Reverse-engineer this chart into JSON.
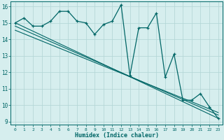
{
  "title": "",
  "xlabel": "Humidex (Indice chaleur)",
  "background_color": "#d6eeee",
  "grid_color": "#b0d4d4",
  "line_color": "#006666",
  "xlim": [
    -0.5,
    23.5
  ],
  "ylim": [
    8.8,
    16.3
  ],
  "yticks": [
    9,
    10,
    11,
    12,
    13,
    14,
    15,
    16
  ],
  "xticks": [
    0,
    1,
    2,
    3,
    4,
    5,
    6,
    7,
    8,
    9,
    10,
    11,
    12,
    13,
    14,
    15,
    16,
    17,
    18,
    19,
    20,
    21,
    22,
    23
  ],
  "series1_x": [
    0,
    1,
    2,
    3,
    4,
    5,
    6,
    7,
    8,
    9,
    10,
    11,
    12,
    13,
    14,
    15,
    16,
    17,
    18,
    19,
    20,
    21,
    22,
    23
  ],
  "series1_y": [
    15.0,
    15.3,
    14.8,
    14.8,
    15.1,
    15.7,
    15.7,
    15.1,
    15.0,
    14.3,
    14.9,
    15.1,
    16.1,
    11.8,
    14.7,
    14.7,
    15.6,
    11.7,
    13.1,
    10.3,
    10.3,
    10.7,
    9.9,
    9.2
  ],
  "series2_x": [
    0,
    23
  ],
  "series2_y": [
    15.0,
    9.2
  ],
  "series3_x": [
    0,
    23
  ],
  "series3_y": [
    14.8,
    9.4
  ],
  "series4_x": [
    0,
    23
  ],
  "series4_y": [
    14.55,
    9.55
  ]
}
